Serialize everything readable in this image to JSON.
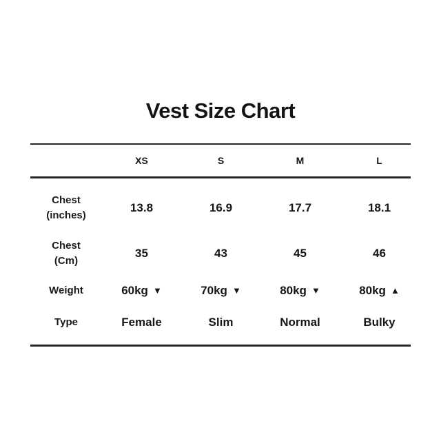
{
  "title": "Vest Size Chart",
  "table": {
    "size_headers": [
      "XS",
      "S",
      "M",
      "L"
    ],
    "rows": {
      "chest_inches": {
        "label_line1": "Chest",
        "label_line2": "(inches)",
        "values": [
          "13.8",
          "16.9",
          "17.7",
          "18.1"
        ]
      },
      "chest_cm": {
        "label_line1": "Chest",
        "label_line2": "(Cm)",
        "values": [
          "35",
          "43",
          "45",
          "46"
        ]
      },
      "weight": {
        "label": "Weight",
        "values": [
          "60kg",
          "70kg",
          "80kg",
          "80kg"
        ],
        "arrows": [
          "▼",
          "▼",
          "▼",
          "▲"
        ]
      },
      "type": {
        "label": "Type",
        "values": [
          "Female",
          "Slim",
          "Normal",
          "Bulky"
        ]
      }
    }
  },
  "colors": {
    "text": "#161616",
    "rule": "#262626",
    "background": "#ffffff"
  }
}
